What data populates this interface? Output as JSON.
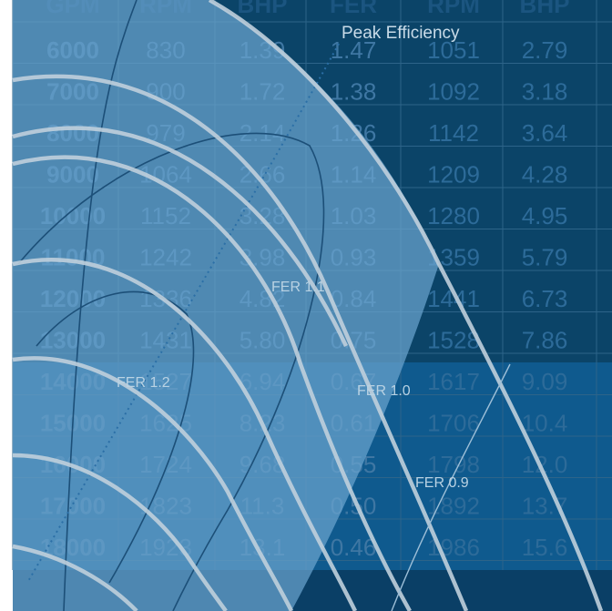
{
  "chart_data": {
    "type": "table",
    "columns": [
      "GPM",
      "RPM",
      "BHP",
      "FER",
      "RPM",
      "BHP"
    ],
    "rows": [
      [
        "6000",
        "830",
        "1.39",
        "1.47",
        "1051",
        "2.79"
      ],
      [
        "7000",
        "900",
        "1.72",
        "1.38",
        "1092",
        "3.18"
      ],
      [
        "8000",
        "979",
        "2.14",
        "1.26",
        "1142",
        "3.64"
      ],
      [
        "9000",
        "1064",
        "2.66",
        "1.14",
        "1209",
        "4.28"
      ],
      [
        "10000",
        "1152",
        "3.28",
        "1.03",
        "1280",
        "4.95"
      ],
      [
        "11000",
        "1242",
        "3.98",
        "0.93",
        "1359",
        "5.79"
      ],
      [
        "12000",
        "1336",
        "4.82",
        "0.84",
        "1441",
        "6.73"
      ],
      [
        "13000",
        "1431",
        "5.80",
        "0.75",
        "1528",
        "7.86"
      ],
      [
        "14000",
        "1527",
        "6.94",
        "0.67",
        "1617",
        "9.09"
      ],
      [
        "15000",
        "1625",
        "8.23",
        "0.61",
        "1706",
        "10.4"
      ],
      [
        "16000",
        "1724",
        "9.68",
        "0.55",
        "1798",
        "12.0"
      ],
      [
        "17000",
        "1823",
        "11.3",
        "0.50",
        "1892",
        "13.7"
      ],
      [
        "18000",
        "1923",
        "13.1",
        "0.46",
        "1986",
        "15.6"
      ]
    ],
    "annotations": {
      "peak": "Peak Efficiency",
      "fer_1_2": "FER 1.2",
      "fer_1_1": "FER 1.1",
      "fer_1_0": "FER 1.0",
      "fer_0_9": "FER 0.9"
    }
  },
  "colors": {
    "background": "#0a3f66",
    "table_band_dark": "#0b4468",
    "table_band_light": "#0f5a8e",
    "overlay_region": "#6aa3cf",
    "contour": "#bfcfdc",
    "inner_contour": "#1c4f78"
  }
}
